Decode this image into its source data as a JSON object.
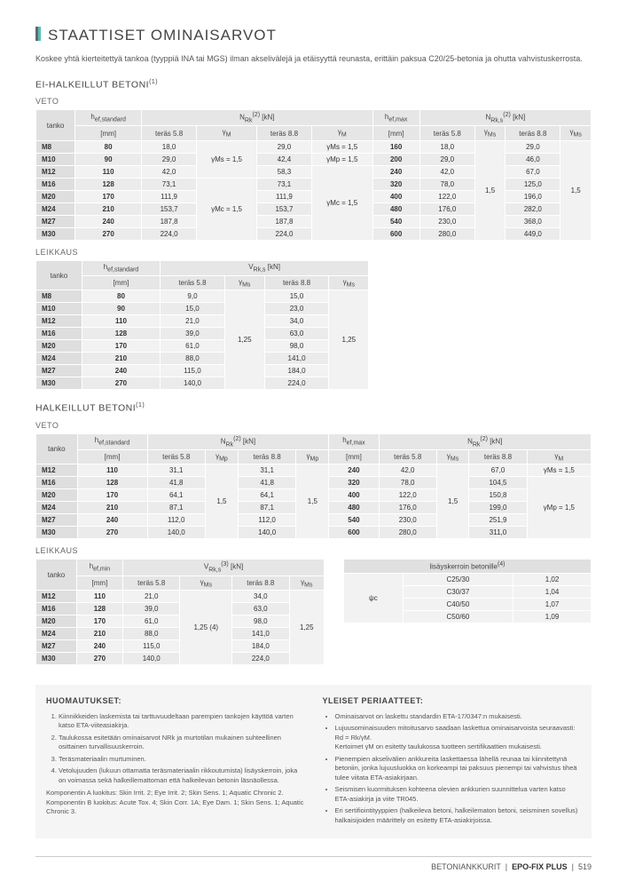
{
  "title": "STAATTISET OMINAISARVOT",
  "intro": "Koskee yhtä kierteitettyä tankoa (tyyppiä INA tai MGS) ilman akselivälejä ja etäisyyttä reunasta, erittäin paksua C20/25-betonia ja ohutta vahvistuskerrosta.",
  "h2a": "EI-HALKEILLUT BETONI",
  "h2b": "HALKEILLUT BETONI",
  "h3_veto": "VETO",
  "h3_leikkaus": "LEIKKAUS",
  "col": {
    "tanko": "tanko",
    "hef_std": "h",
    "hef_std_sub": "ef,standard",
    "hef_min": "h",
    "hef_min_sub": "ef,min",
    "hef_max": "h",
    "hef_max_sub": "ef,max",
    "mm": "[mm]",
    "t58": "teräs 5.8",
    "t88": "teräs 8.8",
    "yM": "γ",
    "yMs": "γ",
    "yMp": "γ",
    "yMc": "γ",
    "N": "N",
    "V": "V",
    "kn": "[kN]"
  },
  "veto1": {
    "rows": [
      {
        "t": "M8",
        "h": "80",
        "a": "18,0",
        "b": "29,0",
        "yMs": "γMs = 1,5",
        "hm": "160",
        "c": "18,0",
        "d": "29,0"
      },
      {
        "t": "M10",
        "h": "90",
        "a": "29,0",
        "b": "42,4",
        "yMp": "γMp = 1,5",
        "hm": "200",
        "c": "29,0",
        "d": "46,0"
      },
      {
        "t": "M12",
        "h": "110",
        "a": "42,0",
        "b": "58,3",
        "hm": "240",
        "c": "42,0",
        "d": "67,0"
      },
      {
        "t": "M16",
        "h": "128",
        "a": "73,1",
        "b": "73,1",
        "hm": "320",
        "c": "78,0",
        "d": "125,0"
      },
      {
        "t": "M20",
        "h": "170",
        "a": "111,9",
        "b": "111,9",
        "hm": "400",
        "c": "122,0",
        "d": "196,0"
      },
      {
        "t": "M24",
        "h": "210",
        "a": "153,7",
        "b": "153,7",
        "hm": "480",
        "c": "176,0",
        "d": "282,0"
      },
      {
        "t": "M27",
        "h": "240",
        "a": "187,8",
        "b": "187,8",
        "hm": "540",
        "c": "230,0",
        "d": "368,0"
      },
      {
        "t": "M30",
        "h": "270",
        "a": "224,0",
        "b": "224,0",
        "hm": "600",
        "c": "280,0",
        "d": "449,0"
      }
    ],
    "yMs15": "γMs = 1,5",
    "yMc15": "γMc = 1,5",
    "one5": "1,5"
  },
  "leik1": {
    "rows": [
      {
        "t": "M8",
        "h": "80",
        "a": "9,0",
        "b": "15,0"
      },
      {
        "t": "M10",
        "h": "90",
        "a": "15,0",
        "b": "23,0"
      },
      {
        "t": "M12",
        "h": "110",
        "a": "21,0",
        "b": "34,0"
      },
      {
        "t": "M16",
        "h": "128",
        "a": "39,0",
        "b": "63,0"
      },
      {
        "t": "M20",
        "h": "170",
        "a": "61,0",
        "b": "98,0"
      },
      {
        "t": "M24",
        "h": "210",
        "a": "88,0",
        "b": "141,0"
      },
      {
        "t": "M27",
        "h": "240",
        "a": "115,0",
        "b": "184,0"
      },
      {
        "t": "M30",
        "h": "270",
        "a": "140,0",
        "b": "224,0"
      }
    ],
    "v125": "1,25"
  },
  "veto2": {
    "rows": [
      {
        "t": "M12",
        "h": "110",
        "a": "31,1",
        "b": "31,1",
        "hm": "240",
        "c": "42,0",
        "d": "67,0",
        "yM": "γMs = 1,5"
      },
      {
        "t": "M16",
        "h": "128",
        "a": "41,8",
        "b": "41,8",
        "hm": "320",
        "c": "78,0",
        "d": "104,5"
      },
      {
        "t": "M20",
        "h": "170",
        "a": "64,1",
        "b": "64,1",
        "hm": "400",
        "c": "122,0",
        "d": "150,8"
      },
      {
        "t": "M24",
        "h": "210",
        "a": "87,1",
        "b": "87,1",
        "hm": "480",
        "c": "176,0",
        "d": "199,0"
      },
      {
        "t": "M27",
        "h": "240",
        "a": "112,0",
        "b": "112,0",
        "hm": "540",
        "c": "230,0",
        "d": "251,9"
      },
      {
        "t": "M30",
        "h": "270",
        "a": "140,0",
        "b": "140,0",
        "hm": "600",
        "c": "280,0",
        "d": "311,0"
      }
    ],
    "one5": "1,5",
    "yMp15": "γMp = 1,5"
  },
  "leik2": {
    "rows": [
      {
        "t": "M12",
        "h": "110",
        "a": "21,0",
        "b": "34,0"
      },
      {
        "t": "M16",
        "h": "128",
        "a": "39,0",
        "b": "63,0"
      },
      {
        "t": "M20",
        "h": "170",
        "a": "61,0",
        "b": "98,0"
      },
      {
        "t": "M24",
        "h": "210",
        "a": "88,0",
        "b": "141,0"
      },
      {
        "t": "M27",
        "h": "240",
        "a": "115,0",
        "b": "184,0"
      },
      {
        "t": "M30",
        "h": "270",
        "a": "140,0",
        "b": "224,0"
      }
    ],
    "v125": "1,25 (4)"
  },
  "lisays": {
    "title": "lisäyskerroin betonille",
    "psi": "ψc",
    "rows": [
      {
        "c": "C25/30",
        "v": "1,02"
      },
      {
        "c": "C30/37",
        "v": "1,04"
      },
      {
        "c": "C40/50",
        "v": "1,07"
      },
      {
        "c": "C50/60",
        "v": "1,09"
      }
    ]
  },
  "notes": {
    "h1": "HUOMAUTUKSET:",
    "h2": "YLEISET PERIAATTEET:",
    "n1": "Kiinnikkeiden laskemista tai tarttuvuudeltaan parempien tankojen käyttöä varten katso ETA-viiteasiakirja.",
    "n2": "Taulukossa esitetään ominaisarvot NRk ja murtotilan mukainen suhteellinen osittainen turvallisuuskerroin.",
    "n3": "Teräsmateriaalin murtuminen.",
    "n4": "Vetolujuuden (lukuun ottamatta teräsmateriaalin rikkoutumista) lisäyskerroin, joka on voimassa sekä halkeillemattoman että halkeilevan betonin läsnäollessa.",
    "nk": "Komponentin A luokitus: Skin Irrit. 2; Eye Irrit. 2; Skin Sens. 1; Aquatic Chronic 2. Komponentin B luokitus: Acute Tox. 4; Skin Corr. 1A; Eye Dam. 1; Skin Sens. 1; Aquatic Chronic 3.",
    "g1": "Ominaisarvot on laskettu standardin ETA-17/0347:n mukaisesti.",
    "g2": "Lujuusominaisuuden mitoitusarvo saadaan laskettua ominaisarvoista seuraavasti: Rd = Rk/γM.",
    "g2b": "Kertoimet γM on esitetty taulukossa tuotteen sertifikaattien mukaisesti.",
    "g3": "Pienempien akselivälien ankkureita laskettaessa lähellä reunaa tai kiinnitettynä betoniin, jonka lujuusluokka on korkeampi tai paksuus pienempi tai vahvistus tiheä tulee viitata ETA-asiakirjaan.",
    "g4": "Seismisen kuormituksen kohteena olevien ankkurien suunnittelua varten katso ETA-asiakirja ja viite TR045.",
    "g5": "Eri sertifiointityyppien (halkeileva betoni, halkeilematon betoni, seisminen sovellus) halkaisijoiden määrittely on esitetty ETA-asiakirjoissa."
  },
  "footer": {
    "a": "BETONIANKKURIT",
    "b": "EPO-FIX PLUS",
    "p": "519"
  }
}
